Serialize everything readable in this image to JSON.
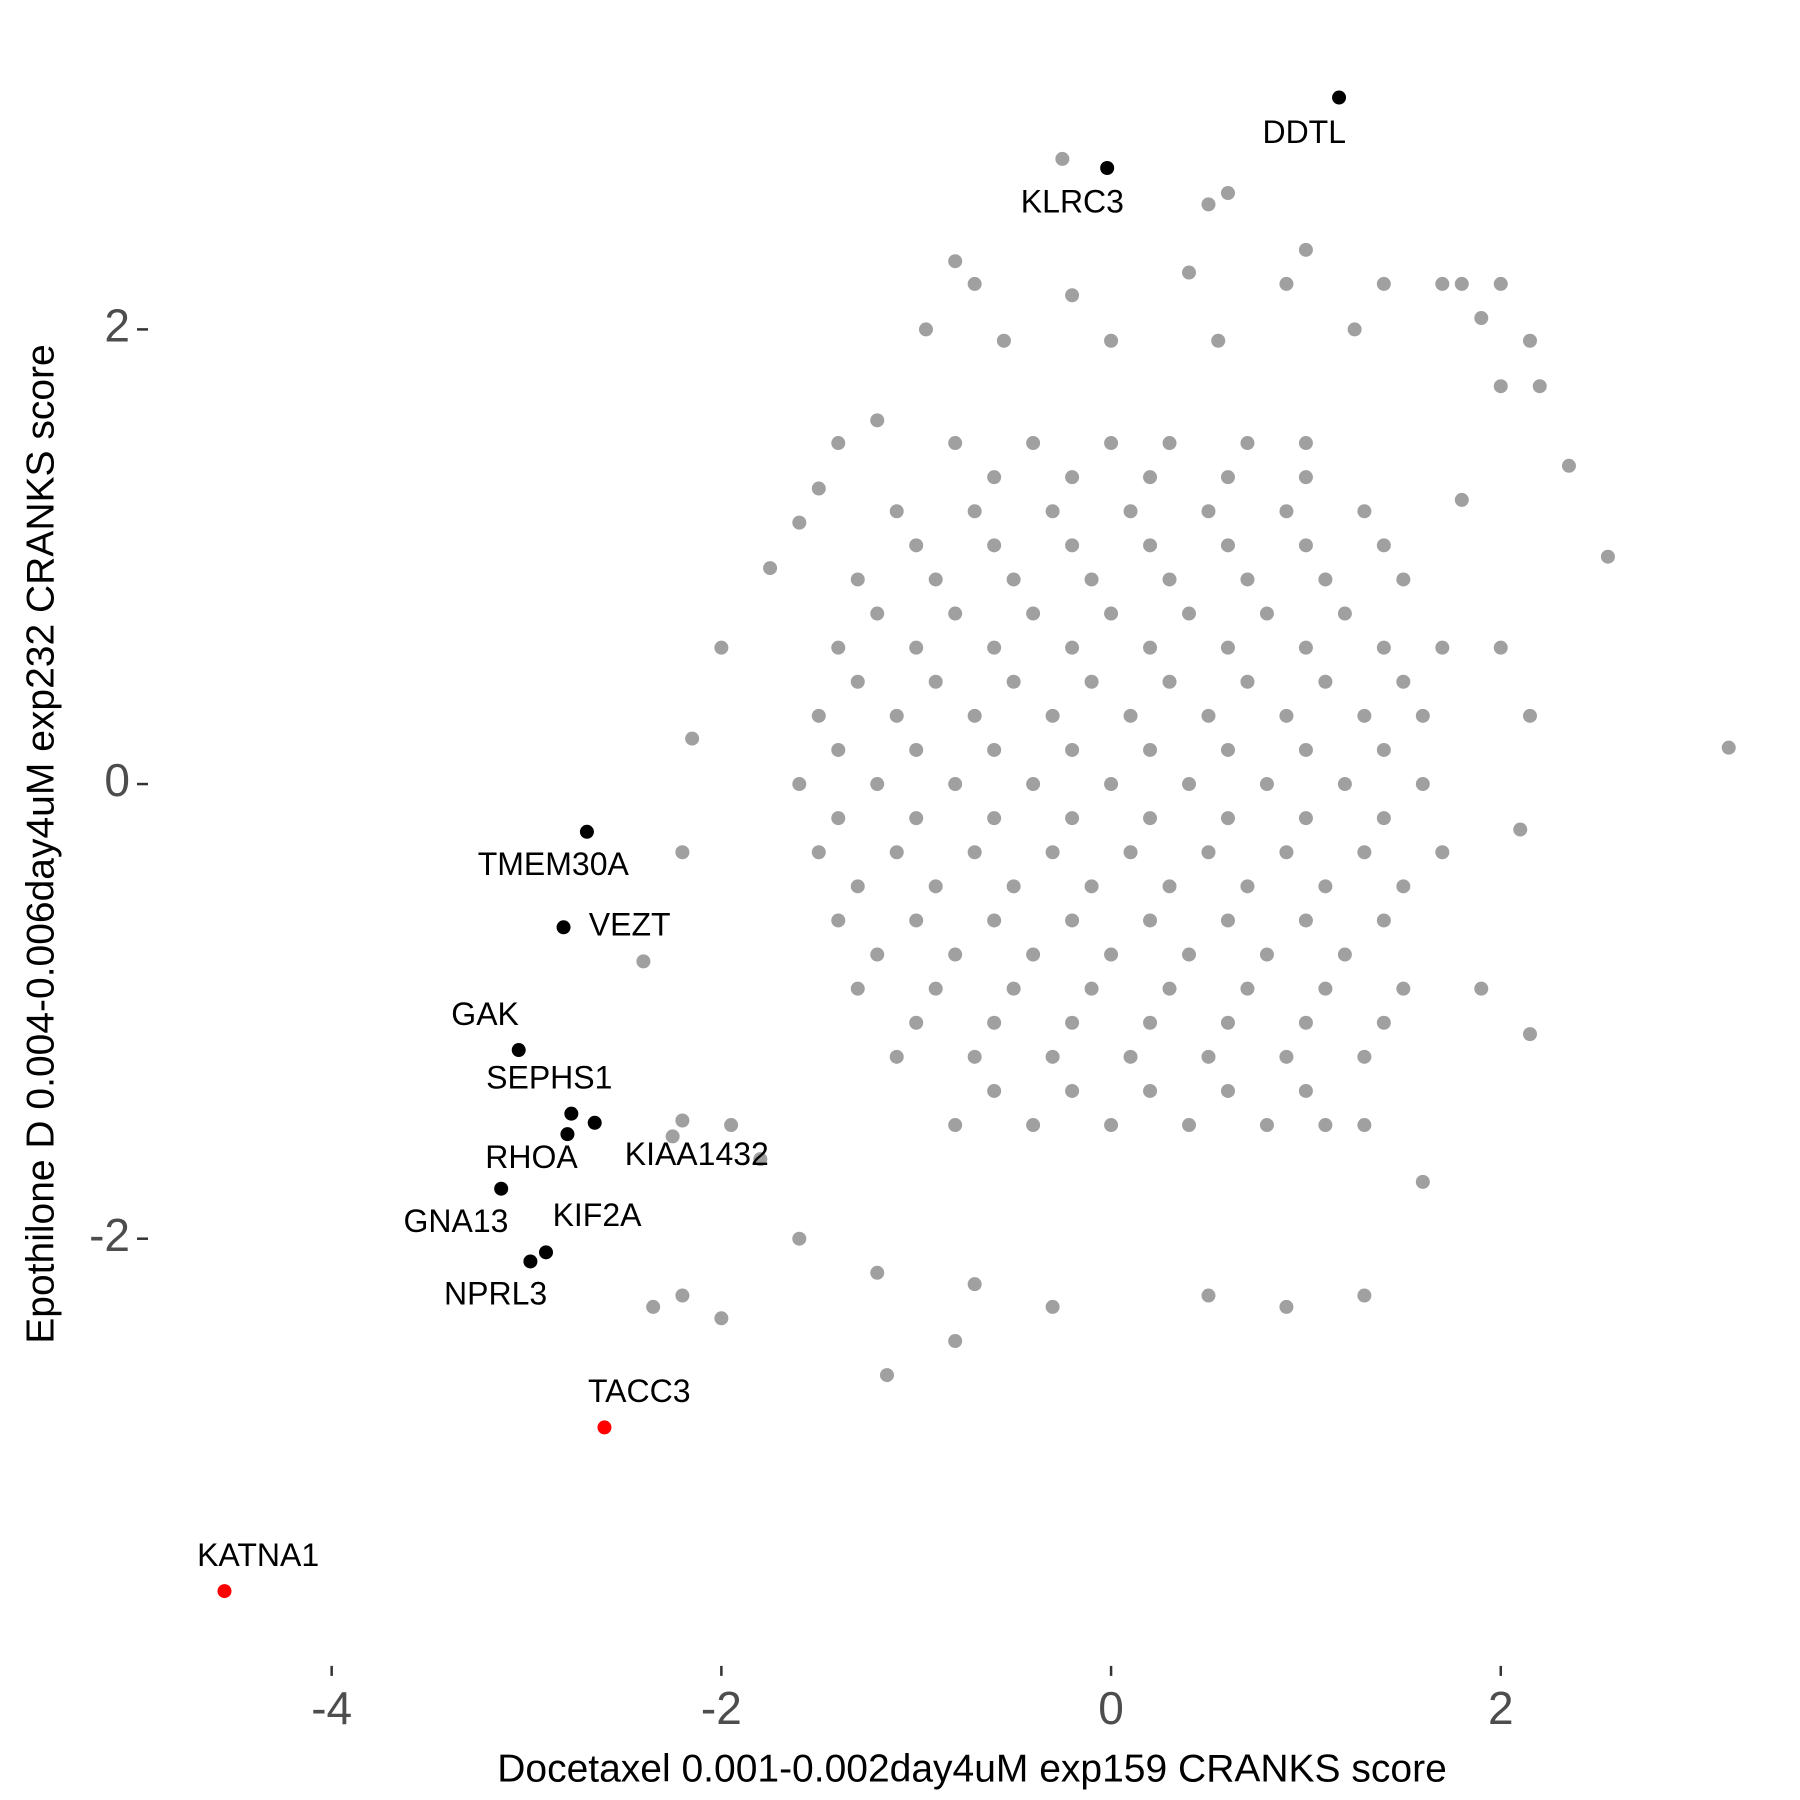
{
  "chart_data": {
    "type": "scatter",
    "x_label": "Docetaxel 0.001-0.002day4uM exp159 CRANKS score",
    "y_label": "Epothilone D 0.004-0.006day4uM exp232 CRANKS score",
    "xlim": [
      -4.9,
      3.45
    ],
    "ylim": [
      -3.8,
      3.2
    ],
    "xticks": [
      -4,
      -2,
      0,
      2
    ],
    "yticks": [
      -2,
      0,
      2
    ],
    "grid": false,
    "series": [
      {
        "color": "#a0a0a0",
        "x": [
          3.17,
          2.55,
          2.2,
          2.35,
          2.15,
          2.0,
          2.15,
          1.8,
          2.0,
          2.1,
          1.9,
          2.15,
          1.3,
          1.6,
          1.3,
          0.9,
          0.5,
          -0.3,
          -0.7,
          -1.15,
          -0.8,
          -1.2,
          -1.6,
          -2.0,
          -2.2,
          -2.35,
          -1.95,
          -2.2,
          -2.25,
          -1.8,
          -2.4,
          -2.2,
          -2.15,
          -2.0,
          -1.75,
          -1.6,
          -1.5,
          -1.4,
          -1.2,
          -0.95,
          -0.8,
          -0.7,
          -0.2,
          -0.25,
          0.5,
          0.6,
          1.0,
          0.4,
          0.9,
          1.4,
          1.7,
          1.8,
          2.0,
          1.9,
          1.25,
          0.55,
          -0.55,
          0.0,
          -0.8,
          -0.4,
          0,
          0.3,
          0.7,
          1.0,
          -0.6,
          -0.2,
          0.2,
          0.6,
          1.0,
          -1.1,
          -0.7,
          -0.3,
          0.1,
          0.5,
          0.9,
          1.3,
          -1.0,
          -0.6,
          -0.2,
          0.2,
          0.6,
          1.0,
          1.4,
          -1.3,
          -0.9,
          -0.5,
          -0.1,
          0.3,
          0.7,
          1.1,
          1.5,
          -1.2,
          -0.8,
          -0.4,
          0,
          0.4,
          0.8,
          1.2,
          -1.4,
          -1.0,
          -0.6,
          -0.2,
          0.2,
          0.6,
          1.0,
          1.4,
          1.7,
          -1.3,
          -0.9,
          -0.5,
          -0.1,
          0.3,
          0.7,
          1.1,
          1.5,
          -1.5,
          -1.1,
          -0.7,
          -0.3,
          0.1,
          0.5,
          0.9,
          1.3,
          1.6,
          -1.4,
          -1.0,
          -0.6,
          -0.2,
          0.2,
          0.6,
          1.0,
          1.4,
          -1.6,
          -1.2,
          -0.8,
          -0.4,
          0,
          0.4,
          0.8,
          1.2,
          1.6,
          -1.4,
          -1.0,
          -0.6,
          -0.2,
          0.2,
          0.6,
          1.0,
          1.4,
          -1.5,
          -1.1,
          -0.7,
          -0.3,
          0.1,
          0.5,
          0.9,
          1.3,
          1.7,
          -1.3,
          -0.9,
          -0.5,
          -0.1,
          0.3,
          0.7,
          1.1,
          1.5,
          -1.4,
          -1.0,
          -0.6,
          -0.2,
          0.2,
          0.6,
          1.0,
          1.4,
          -1.2,
          -0.8,
          -0.4,
          0,
          0.4,
          0.8,
          1.2,
          -1.3,
          -0.9,
          -0.5,
          -0.1,
          0.3,
          0.7,
          1.1,
          1.5,
          -1.0,
          -0.6,
          -0.2,
          0.2,
          0.6,
          1.0,
          1.4,
          -1.1,
          -0.7,
          -0.3,
          0.1,
          0.5,
          0.9,
          1.3,
          -0.6,
          -0.2,
          0.2,
          0.6,
          1.0,
          -0.8,
          -0.4,
          0,
          0.4,
          0.8,
          1.1
        ],
        "values": [
          0.16,
          1.0,
          1.75,
          1.4,
          1.95,
          1.75,
          0.3,
          1.25,
          0.6,
          -0.2,
          -0.9,
          -1.1,
          -1.5,
          -1.75,
          -2.25,
          -2.3,
          -2.25,
          -2.3,
          -2.2,
          -2.6,
          -2.45,
          -2.15,
          -2.0,
          -2.35,
          -2.25,
          -2.3,
          -1.5,
          -1.48,
          -1.55,
          -1.65,
          -0.78,
          -0.3,
          0.2,
          0.6,
          0.95,
          1.15,
          1.3,
          1.5,
          1.6,
          2.0,
          2.3,
          2.2,
          2.15,
          2.75,
          2.55,
          2.6,
          2.35,
          2.25,
          2.2,
          2.2,
          2.2,
          2.2,
          2.2,
          2.05,
          2.0,
          1.95,
          1.95,
          1.95,
          1.5,
          1.5,
          1.5,
          1.5,
          1.5,
          1.5,
          1.35,
          1.35,
          1.35,
          1.35,
          1.35,
          1.2,
          1.2,
          1.2,
          1.2,
          1.2,
          1.2,
          1.2,
          1.05,
          1.05,
          1.05,
          1.05,
          1.05,
          1.05,
          1.05,
          0.9,
          0.9,
          0.9,
          0.9,
          0.9,
          0.9,
          0.9,
          0.9,
          0.75,
          0.75,
          0.75,
          0.75,
          0.75,
          0.75,
          0.75,
          0.6,
          0.6,
          0.6,
          0.6,
          0.6,
          0.6,
          0.6,
          0.6,
          0.6,
          0.45,
          0.45,
          0.45,
          0.45,
          0.45,
          0.45,
          0.45,
          0.45,
          0.3,
          0.3,
          0.3,
          0.3,
          0.3,
          0.3,
          0.3,
          0.3,
          0.3,
          0.15,
          0.15,
          0.15,
          0.15,
          0.15,
          0.15,
          0.15,
          0.15,
          0,
          0,
          0,
          0,
          0,
          0,
          0,
          0,
          0,
          -0.15,
          -0.15,
          -0.15,
          -0.15,
          -0.15,
          -0.15,
          -0.15,
          -0.15,
          -0.3,
          -0.3,
          -0.3,
          -0.3,
          -0.3,
          -0.3,
          -0.3,
          -0.3,
          -0.3,
          -0.45,
          -0.45,
          -0.45,
          -0.45,
          -0.45,
          -0.45,
          -0.45,
          -0.45,
          -0.6,
          -0.6,
          -0.6,
          -0.6,
          -0.6,
          -0.6,
          -0.6,
          -0.6,
          -0.75,
          -0.75,
          -0.75,
          -0.75,
          -0.75,
          -0.75,
          -0.75,
          -0.9,
          -0.9,
          -0.9,
          -0.9,
          -0.9,
          -0.9,
          -0.9,
          -0.9,
          -1.05,
          -1.05,
          -1.05,
          -1.05,
          -1.05,
          -1.05,
          -1.05,
          -1.2,
          -1.2,
          -1.2,
          -1.2,
          -1.2,
          -1.2,
          -1.2,
          -1.35,
          -1.35,
          -1.35,
          -1.35,
          -1.35,
          -1.5,
          -1.5,
          -1.5,
          -1.5,
          -1.5,
          -1.5
        ]
      },
      {
        "color": "#000000",
        "labels": [
          "DDTL",
          "KLRC3",
          "TMEM30A",
          "VEZT",
          "GAK",
          "SEPHS1",
          "KIAA1432",
          "RHOA",
          "GNA13",
          "KIF2A",
          "NPRL3"
        ],
        "x": [
          1.17,
          -0.02,
          -2.69,
          -2.81,
          -3.04,
          -2.77,
          -2.65,
          -2.79,
          -3.13,
          -2.9,
          -2.98
        ],
        "values": [
          3.02,
          2.71,
          -0.21,
          -0.63,
          -1.17,
          -1.45,
          -1.49,
          -1.54,
          -1.78,
          -2.06,
          -2.1
        ]
      },
      {
        "color": "#ff0000",
        "labels": [
          "TACC3",
          "KATNA1"
        ],
        "x": [
          -2.6,
          -4.55
        ],
        "values": [
          -2.83,
          -3.55
        ]
      }
    ]
  }
}
